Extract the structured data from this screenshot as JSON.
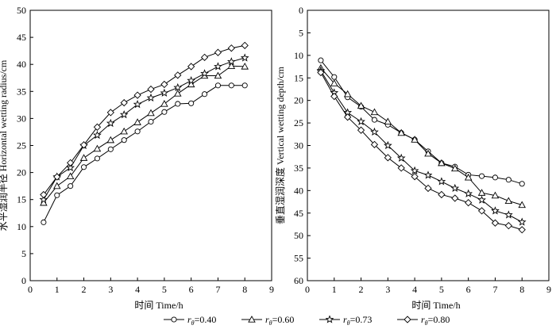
{
  "chart_data": [
    {
      "type": "line",
      "xlabel": "时间 Time/h",
      "ylabel": "水平湿润半径 Horizontal wetting radius/cm",
      "xlim": [
        0,
        9
      ],
      "ylim": [
        0,
        50
      ],
      "x_ticks": [
        0,
        1,
        2,
        3,
        4,
        5,
        6,
        7,
        8,
        9
      ],
      "y_ticks": [
        0,
        5,
        10,
        15,
        20,
        25,
        30,
        35,
        40,
        45,
        50
      ],
      "y_inverted": false,
      "x": [
        0.5,
        1,
        1.5,
        2,
        2.5,
        3,
        3.5,
        4,
        4.5,
        5,
        5.5,
        6,
        6.5,
        7,
        7.5,
        8
      ],
      "series": [
        {
          "name": "r_θ=0.40",
          "marker": "circle",
          "values": [
            10.8,
            15.8,
            17.5,
            21.0,
            22.6,
            24.3,
            26.0,
            27.6,
            29.4,
            31.2,
            32.7,
            32.8,
            34.5,
            36.1,
            36.1,
            36.1
          ]
        },
        {
          "name": "r_θ=0.60",
          "marker": "triangle",
          "values": [
            14.4,
            17.5,
            19.3,
            22.7,
            24.4,
            26.0,
            27.6,
            29.3,
            31.0,
            32.7,
            34.6,
            36.3,
            37.9,
            37.9,
            39.7,
            39.6
          ]
        },
        {
          "name": "r_θ=0.73",
          "marker": "star",
          "values": [
            15.0,
            19.2,
            20.9,
            25.0,
            26.9,
            29.1,
            30.7,
            32.6,
            33.8,
            34.7,
            35.7,
            37.0,
            38.3,
            39.6,
            40.5,
            41.2
          ]
        },
        {
          "name": "r_θ=0.80",
          "marker": "diamond",
          "values": [
            15.9,
            19.2,
            21.8,
            25.1,
            28.4,
            31.1,
            32.9,
            34.3,
            35.4,
            36.3,
            38.0,
            39.6,
            41.3,
            42.2,
            43.0,
            43.5
          ]
        }
      ]
    },
    {
      "type": "line",
      "xlabel": "时间 Time/h",
      "ylabel": "垂直湿润深度 Vertical wetting depth/cm",
      "xlim": [
        0,
        9
      ],
      "ylim": [
        0,
        60
      ],
      "x_ticks": [
        0,
        1,
        2,
        3,
        4,
        5,
        6,
        7,
        8,
        9
      ],
      "y_ticks": [
        0,
        5,
        10,
        15,
        20,
        25,
        30,
        35,
        40,
        45,
        50,
        55,
        60
      ],
      "y_inverted": true,
      "x": [
        0.5,
        1,
        1.5,
        2,
        2.5,
        3,
        3.5,
        4,
        4.5,
        5,
        5.5,
        6,
        6.5,
        7,
        7.5,
        8
      ],
      "series": [
        {
          "name": "r_θ=0.40",
          "marker": "circle",
          "values": [
            11.1,
            14.8,
            19.3,
            21.4,
            24.3,
            25.4,
            27.2,
            28.7,
            31.3,
            33.9,
            34.7,
            36.5,
            36.8,
            37.1,
            37.6,
            38.5
          ]
        },
        {
          "name": "r_θ=0.60",
          "marker": "triangle",
          "values": [
            12.8,
            16.2,
            18.6,
            21.2,
            22.6,
            24.7,
            27.2,
            28.7,
            31.8,
            33.9,
            35.1,
            37.1,
            40.5,
            41.1,
            42.3,
            43.2
          ]
        },
        {
          "name": "r_θ=0.73",
          "marker": "star",
          "values": [
            13.4,
            18.3,
            22.7,
            24.7,
            27.0,
            30.0,
            32.8,
            35.6,
            36.6,
            38.0,
            39.5,
            40.7,
            42.1,
            44.5,
            45.4,
            47.0
          ]
        },
        {
          "name": "r_θ=0.80",
          "marker": "diamond",
          "values": [
            13.8,
            19.1,
            23.7,
            26.6,
            29.8,
            32.7,
            35.0,
            36.9,
            39.5,
            40.9,
            41.7,
            42.7,
            44.5,
            47.2,
            47.8,
            48.7
          ]
        }
      ]
    }
  ],
  "legend": [
    {
      "prefix": "r",
      "sub": "θ",
      "text": "=0.40",
      "marker": "circle"
    },
    {
      "prefix": "r",
      "sub": "θ",
      "text": "=0.60",
      "marker": "triangle"
    },
    {
      "prefix": "r",
      "sub": "θ",
      "text": "=0.73",
      "marker": "star"
    },
    {
      "prefix": "r",
      "sub": "θ",
      "text": "=0.80",
      "marker": "diamond"
    }
  ]
}
